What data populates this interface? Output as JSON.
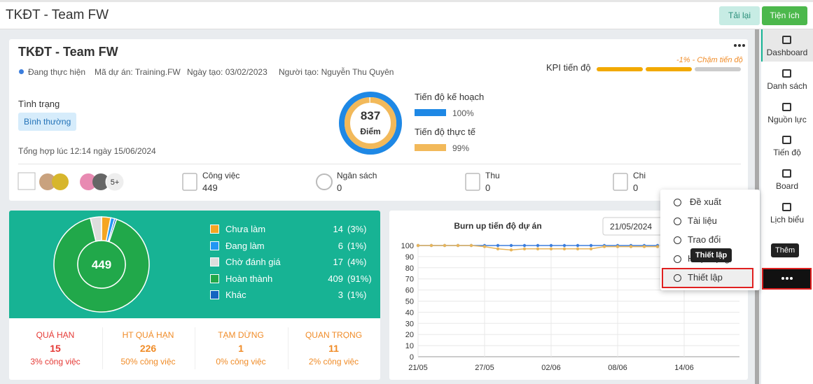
{
  "header": {
    "title": "TKĐT - Team FW",
    "reload": "Tải lại",
    "utilities": "Tiện ích"
  },
  "project": {
    "title": "TKĐT - Team FW",
    "status": "Đang thực hiện",
    "code": "Mã dự án: Training.FW",
    "created": "Ngày tạo: 03/02/2023",
    "creator": "Người tạo: Nguyễn Thu Quyên",
    "kpi_label": "KPI tiến độ",
    "kpi_note": "-1% - Chậm tiến độ",
    "condition_label": "Tình trạng",
    "condition": "Bình thường",
    "summary": "Tổng hợp lúc 12:14 ngày 15/06/2024",
    "score": 837,
    "score_label": "Điểm",
    "plan": {
      "label": "Tiến độ kế hoạch",
      "value": 100,
      "value_label": "100%"
    },
    "actual": {
      "label": "Tiến độ thực tế",
      "value": 99,
      "value_label": "99%"
    },
    "members_more": "5+",
    "stats": [
      {
        "label": "Công việc",
        "value": 449
      },
      {
        "label": "Ngân sách",
        "value": 0
      },
      {
        "label": "Thu",
        "value": 0
      },
      {
        "label": "Chi",
        "value": 0
      }
    ]
  },
  "chart_data": [
    {
      "type": "donut",
      "total": 449,
      "categories": [
        "Chưa làm",
        "Đang làm",
        "Chờ đánh giá",
        "Hoàn thành",
        "Khác"
      ],
      "values": [
        14,
        6,
        17,
        409,
        3
      ],
      "value_labels": [
        "(3%)",
        "(1%)",
        "(4%)",
        "(91%)",
        "(1%)"
      ],
      "colors": [
        "#f5a623",
        "#2196f3",
        "#dddddd",
        "#21a84a",
        "#1565c0"
      ]
    },
    {
      "type": "line",
      "title": "Burn up tiến độ dự án",
      "date": "21/05/2024",
      "categories": [
        "21/05",
        null,
        null,
        null,
        null,
        "27/05",
        null,
        null,
        null,
        null,
        "02/06",
        null,
        null,
        null,
        null,
        "08/06",
        null,
        null,
        null,
        null,
        "14/06",
        null,
        null,
        null,
        null
      ],
      "series": [
        {
          "color": "#3b7ddd",
          "values": [
            100,
            100,
            100,
            100,
            100,
            100,
            100,
            100,
            100,
            100,
            100,
            100,
            100,
            100,
            100,
            100,
            100,
            100,
            100,
            null,
            null,
            null,
            null,
            null,
            null
          ]
        },
        {
          "color": "#e8b55a",
          "values": [
            100,
            100,
            100,
            100,
            100,
            99,
            97,
            96,
            97,
            97,
            97,
            97,
            97,
            97,
            99,
            99,
            99,
            99,
            99,
            null,
            null,
            null,
            null,
            null,
            null
          ]
        }
      ],
      "ylim": [
        0,
        100
      ],
      "yticks": [
        0,
        10,
        20,
        30,
        40,
        50,
        60,
        70,
        80,
        90,
        100
      ],
      "grid": true
    }
  ],
  "overview": [
    {
      "label": "QUÁ HẠN",
      "value": 15,
      "note": "3% công việc",
      "color": "#e53935"
    },
    {
      "label": "HT QUÁ HẠN",
      "value": 226,
      "note": "50% công việc",
      "color": "#f08c28"
    },
    {
      "label": "TẠM DỪNG",
      "value": 1,
      "note": "0% công việc",
      "color": "#f08c28"
    },
    {
      "label": "QUAN TRỌNG",
      "value": 11,
      "note": "2% công việc",
      "color": "#f08c28"
    }
  ],
  "menu": {
    "items": [
      "Đề xuất",
      "Tài liệu",
      "Trao đổi",
      "Hoạt động",
      "Thiết lập"
    ],
    "tooltip": "Thiết lập"
  },
  "sidebar": {
    "items": [
      "Dashboard",
      "Danh sách",
      "Nguồn lực",
      "Tiến độ",
      "Board",
      "Lịch biểu"
    ],
    "tooltip": "Thêm"
  }
}
